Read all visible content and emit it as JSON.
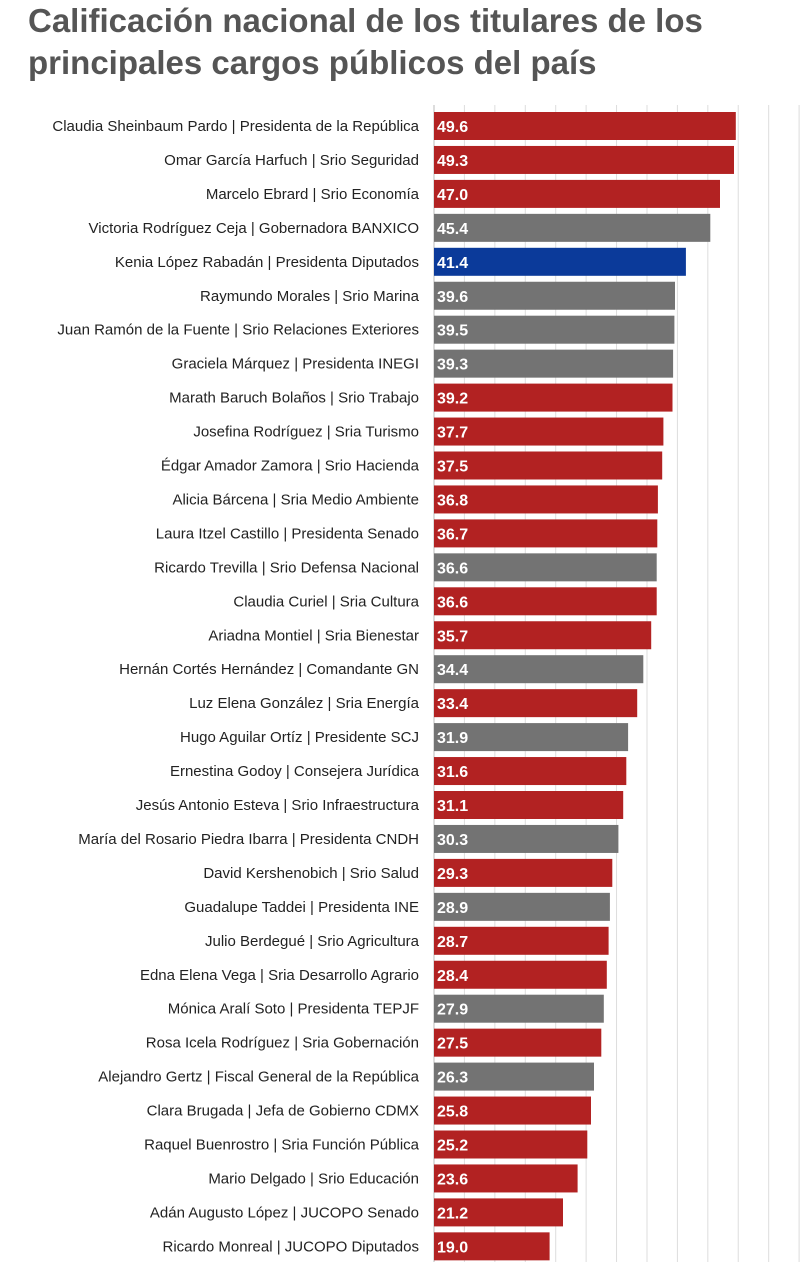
{
  "chart_data": {
    "type": "bar",
    "orientation": "horizontal",
    "title": "Calificación nacional de los titulares de los principales cargos públicos del país",
    "xlabel": "",
    "ylabel": "",
    "xlim": [
      0,
      60
    ],
    "grid": true,
    "legend": "none",
    "colors": {
      "red": "#b22222",
      "gray": "#737373",
      "blue": "#0b3a9a"
    },
    "categories": [
      "Claudia Sheinbaum Pardo | Presidenta de la República",
      "Omar García Harfuch | Srio Seguridad",
      "Marcelo Ebrard | Srio Economía",
      "Victoria Rodríguez Ceja | Gobernadora BANXICO",
      "Kenia López Rabadán | Presidenta Diputados",
      "Raymundo Morales | Srio Marina",
      "Juan Ramón de la Fuente | Srio Relaciones Exteriores",
      "Graciela Márquez | Presidenta INEGI",
      "Marath Baruch Bolaños | Srio Trabajo",
      "Josefina Rodríguez | Sria Turismo",
      "Édgar Amador Zamora | Srio Hacienda",
      "Alicia Bárcena | Sria Medio Ambiente",
      "Laura Itzel Castillo | Presidenta Senado",
      "Ricardo Trevilla | Srio Defensa Nacional",
      "Claudia Curiel | Sria Cultura",
      "Ariadna Montiel | Sria Bienestar",
      "Hernán Cortés Hernández | Comandante GN",
      "Luz Elena González | Sria Energía",
      "Hugo Aguilar Ortíz | Presidente  SCJ",
      "Ernestina Godoy | Consejera Jurídica",
      "Jesús Antonio Esteva | Srio Infraestructura",
      "María del Rosario Piedra Ibarra | Presidenta CNDH",
      "David Kershenobich | Srio Salud",
      "Guadalupe Taddei | Presidenta INE",
      "Julio Berdegué | Srio Agricultura",
      "Edna Elena Vega | Sria Desarrollo Agrario",
      "Mónica Aralí Soto | Presidenta TEPJF",
      "Rosa Icela Rodríguez | Sria Gobernación",
      "Alejandro Gertz | Fiscal General de la República",
      "Clara Brugada | Jefa de Gobierno CDMX",
      "Raquel Buenrostro | Sria Función Pública",
      "Mario Delgado | Srio Educación",
      "Adán Augusto López | JUCOPO Senado",
      "Ricardo Monreal | JUCOPO Diputados"
    ],
    "values": [
      49.6,
      49.3,
      47.0,
      45.4,
      41.4,
      39.6,
      39.5,
      39.3,
      39.2,
      37.7,
      37.5,
      36.8,
      36.7,
      36.6,
      36.6,
      35.7,
      34.4,
      33.4,
      31.9,
      31.6,
      31.1,
      30.3,
      29.3,
      28.9,
      28.7,
      28.4,
      27.9,
      27.5,
      26.3,
      25.8,
      25.2,
      23.6,
      21.2,
      19.0
    ],
    "value_labels": [
      "49.6",
      "49.3",
      "47.0",
      "45.4",
      "41.4",
      "39.6",
      "39.5",
      "39.3",
      "39.2",
      "37.7",
      "37.5",
      "36.8",
      "36.7",
      "36.6",
      "36.6",
      "35.7",
      "34.4",
      "33.4",
      "31.9",
      "31.6",
      "31.1",
      "30.3",
      "29.3",
      "28.9",
      "28.7",
      "28.4",
      "27.9",
      "27.5",
      "26.3",
      "25.8",
      "25.2",
      "23.6",
      "21.2",
      "19.0"
    ],
    "bar_colors": [
      "red",
      "red",
      "red",
      "gray",
      "blue",
      "gray",
      "gray",
      "gray",
      "red",
      "red",
      "red",
      "red",
      "red",
      "gray",
      "red",
      "red",
      "gray",
      "red",
      "gray",
      "red",
      "red",
      "gray",
      "red",
      "gray",
      "red",
      "red",
      "gray",
      "red",
      "gray",
      "red",
      "red",
      "red",
      "red",
      "red"
    ]
  }
}
